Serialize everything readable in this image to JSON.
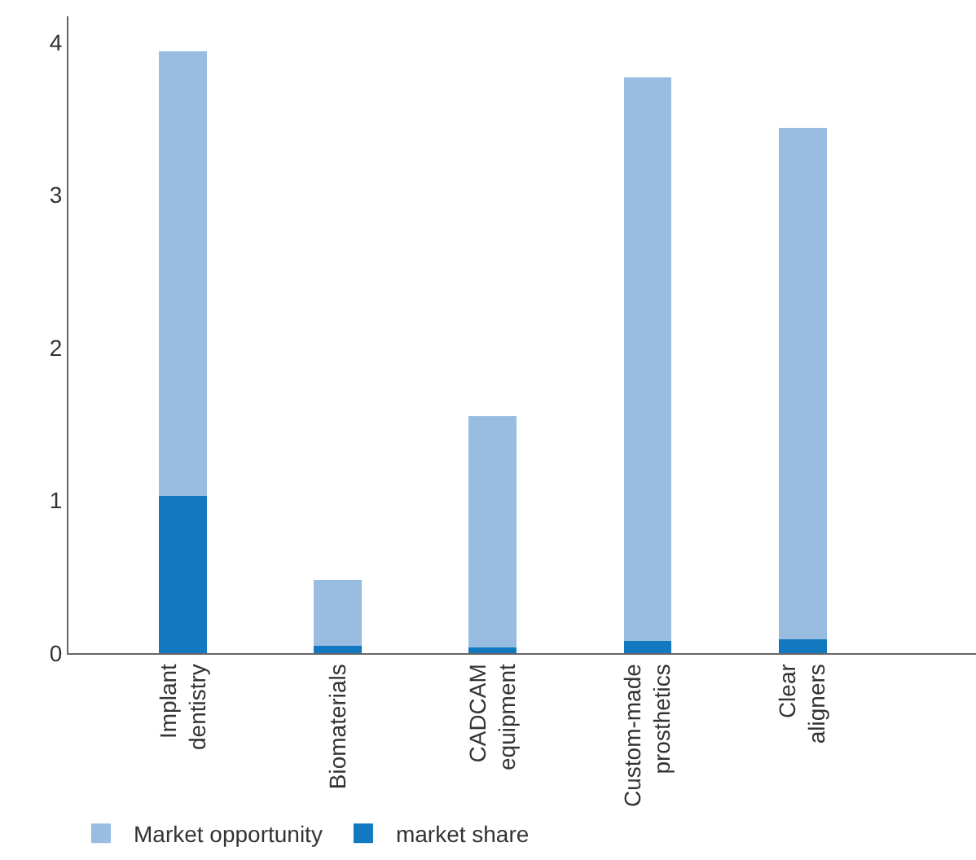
{
  "chart_data": {
    "type": "bar",
    "stacked": true,
    "categories": [
      "Implant\ndentistry",
      "Biomaterials",
      "CADCAM\nequipment",
      "Custom-made\nprosthetics",
      "Clear\naligners"
    ],
    "series": [
      {
        "name": "market share",
        "color": "#1279c0",
        "values": [
          1.03,
          0.05,
          0.04,
          0.08,
          0.09
        ]
      },
      {
        "name": "Market opportunity",
        "color": "#98bde1",
        "values": [
          2.91,
          0.43,
          1.51,
          3.69,
          3.35
        ]
      }
    ],
    "ylim": [
      0,
      4.17
    ],
    "yticks": [
      0,
      1,
      2,
      3,
      4
    ],
    "legend": "bottom"
  }
}
